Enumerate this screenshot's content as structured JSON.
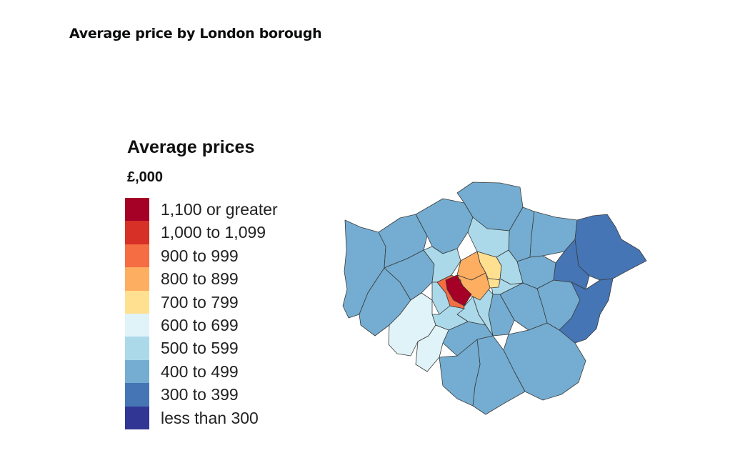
{
  "page": {
    "title": "Average price by London borough"
  },
  "legend": {
    "title": "Average prices",
    "unit": "£,000",
    "items": [
      {
        "label": "1,100 or greater",
        "color": "#a50026"
      },
      {
        "label": "1,000 to 1,099",
        "color": "#d73027"
      },
      {
        "label": "900 to 999",
        "color": "#f46d43"
      },
      {
        "label": "800 to 899",
        "color": "#fdae61"
      },
      {
        "label": "700 to 799",
        "color": "#fee090"
      },
      {
        "label": "600 to 699",
        "color": "#e0f3f8"
      },
      {
        "label": "500 to 599",
        "color": "#abd9e9"
      },
      {
        "label": "400 to 499",
        "color": "#74add1"
      },
      {
        "label": "300 to 399",
        "color": "#4575b4"
      },
      {
        "label": "less than 300",
        "color": "#313695"
      }
    ]
  },
  "map": {
    "boroughs": [
      {
        "band": 7
      },
      {
        "band": 7
      },
      {
        "band": 7
      },
      {
        "band": 7
      },
      {
        "band": 7
      },
      {
        "band": 7
      },
      {
        "band": 7
      },
      {
        "band": 7
      },
      {
        "band": 7
      },
      {
        "band": 7
      },
      {
        "band": 7
      },
      {
        "band": 7
      },
      {
        "band": 7
      },
      {
        "band": 7
      },
      {
        "band": 7
      },
      {
        "band": 7
      },
      {
        "band": 6
      },
      {
        "band": 6
      },
      {
        "band": 6
      },
      {
        "band": 6
      },
      {
        "band": 6
      },
      {
        "band": 6
      },
      {
        "band": 6
      },
      {
        "band": 6
      },
      {
        "band": 5
      },
      {
        "band": 5
      },
      {
        "band": 4
      },
      {
        "band": 4
      },
      {
        "band": 3
      },
      {
        "band": 3
      },
      {
        "band": 2
      },
      {
        "band": 8
      },
      {
        "band": 8
      },
      {
        "band": 8
      },
      {
        "band": 0
      }
    ]
  }
}
